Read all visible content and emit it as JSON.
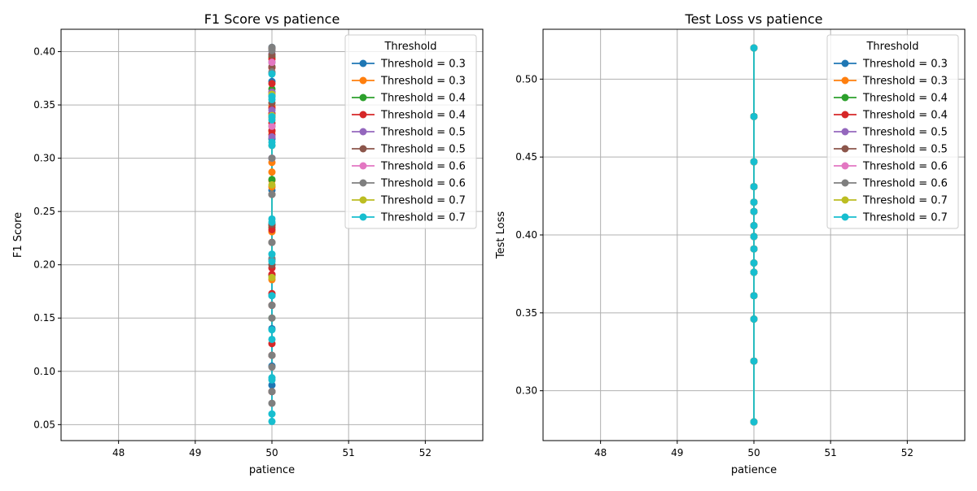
{
  "chart_data": [
    {
      "type": "line",
      "title": "F1 Score vs patience",
      "xlabel": "patience",
      "ylabel": "F1 Score",
      "xlim": [
        47.25,
        52.75
      ],
      "ylim": [
        0.035,
        0.421
      ],
      "xticks": [
        48,
        49,
        50,
        51,
        52
      ],
      "xtick_labels": [
        "48",
        "49",
        "50",
        "51",
        "52"
      ],
      "yticks": [
        0.05,
        0.1,
        0.15,
        0.2,
        0.25,
        0.3,
        0.35,
        0.4
      ],
      "ytick_labels": [
        "0.05",
        "0.10",
        "0.15",
        "0.20",
        "0.25",
        "0.30",
        "0.35",
        "0.40"
      ],
      "grid": true,
      "legend_title": "Threshold",
      "legend_position": "top-right",
      "series": [
        {
          "name": "Threshold = 0.3",
          "color": "#1f77b4",
          "x": 50,
          "y": [
            0.087,
            0.105,
            0.14,
            0.171,
            0.205,
            0.238,
            0.27,
            0.3,
            0.318,
            0.34,
            0.358,
            0.372,
            0.39,
            0.404
          ]
        },
        {
          "name": "Threshold = 0.3",
          "color": "#ff7f0e",
          "x": 50,
          "y": [
            0.186,
            0.231,
            0.273,
            0.279,
            0.287,
            0.296,
            0.312,
            0.325,
            0.338,
            0.349
          ]
        },
        {
          "name": "Threshold = 0.4",
          "color": "#2ca02c",
          "x": 50,
          "y": [
            0.15,
            0.19,
            0.235,
            0.28,
            0.33,
            0.365,
            0.395
          ]
        },
        {
          "name": "Threshold = 0.4",
          "color": "#d62728",
          "x": 50,
          "y": [
            0.081,
            0.115,
            0.126,
            0.162,
            0.173,
            0.191,
            0.197,
            0.233,
            0.237,
            0.322,
            0.326,
            0.333,
            0.342,
            0.347,
            0.362,
            0.37,
            0.385,
            0.393
          ]
        },
        {
          "name": "Threshold = 0.5",
          "color": "#9467bd",
          "x": 50,
          "y": [
            0.32,
            0.345,
            0.362,
            0.38,
            0.398
          ]
        },
        {
          "name": "Threshold = 0.5",
          "color": "#8c564b",
          "x": 50,
          "y": [
            0.081,
            0.115,
            0.162,
            0.2,
            0.221,
            0.238,
            0.266,
            0.352,
            0.386,
            0.397,
            0.403
          ]
        },
        {
          "name": "Threshold = 0.6",
          "color": "#e377c2",
          "x": 50,
          "y": [
            0.3,
            0.33,
            0.36,
            0.39
          ]
        },
        {
          "name": "Threshold = 0.6",
          "color": "#7f7f7f",
          "x": 50,
          "y": [
            0.07,
            0.081,
            0.104,
            0.115,
            0.15,
            0.162,
            0.206,
            0.221,
            0.266,
            0.3,
            0.34,
            0.381,
            0.401,
            0.404
          ]
        },
        {
          "name": "Threshold = 0.7",
          "color": "#bcbd22",
          "x": 50,
          "y": [
            0.188,
            0.275,
            0.34,
            0.36
          ]
        },
        {
          "name": "Threshold = 0.7",
          "color": "#17becf",
          "x": 50,
          "y": [
            0.053,
            0.06,
            0.092,
            0.094,
            0.13,
            0.139,
            0.171,
            0.203,
            0.21,
            0.24,
            0.243,
            0.312,
            0.315,
            0.336,
            0.339,
            0.355,
            0.358,
            0.379
          ]
        }
      ]
    },
    {
      "type": "line",
      "title": "Test Loss vs patience",
      "xlabel": "patience",
      "ylabel": "Test Loss",
      "xlim": [
        47.25,
        52.75
      ],
      "ylim": [
        0.268,
        0.532
      ],
      "xticks": [
        48,
        49,
        50,
        51,
        52
      ],
      "xtick_labels": [
        "48",
        "49",
        "50",
        "51",
        "52"
      ],
      "yticks": [
        0.3,
        0.35,
        0.4,
        0.45,
        0.5
      ],
      "ytick_labels": [
        "0.30",
        "0.35",
        "0.40",
        "0.45",
        "0.50"
      ],
      "grid": true,
      "legend_title": "Threshold",
      "legend_position": "top-right",
      "series": [
        {
          "name": "Threshold = 0.3",
          "color": "#1f77b4",
          "x": 50,
          "y": [
            0.28,
            0.319,
            0.346,
            0.361,
            0.376,
            0.382,
            0.391,
            0.399,
            0.406,
            0.415,
            0.421,
            0.431,
            0.447,
            0.476,
            0.52
          ]
        },
        {
          "name": "Threshold = 0.3",
          "color": "#ff7f0e",
          "x": 50,
          "y": [
            0.28,
            0.319,
            0.346,
            0.361,
            0.376,
            0.382,
            0.391,
            0.399,
            0.406,
            0.415,
            0.421,
            0.431,
            0.447,
            0.476,
            0.52
          ]
        },
        {
          "name": "Threshold = 0.4",
          "color": "#2ca02c",
          "x": 50,
          "y": [
            0.28,
            0.319,
            0.346,
            0.361,
            0.376,
            0.382,
            0.391,
            0.399,
            0.406,
            0.415,
            0.421,
            0.431,
            0.447,
            0.476,
            0.52
          ]
        },
        {
          "name": "Threshold = 0.4",
          "color": "#d62728",
          "x": 50,
          "y": [
            0.28,
            0.319,
            0.346,
            0.361,
            0.376,
            0.382,
            0.391,
            0.399,
            0.406,
            0.415,
            0.421,
            0.431,
            0.447,
            0.476,
            0.52
          ]
        },
        {
          "name": "Threshold = 0.5",
          "color": "#9467bd",
          "x": 50,
          "y": [
            0.28,
            0.319,
            0.346,
            0.361,
            0.376,
            0.382,
            0.391,
            0.399,
            0.406,
            0.415,
            0.421,
            0.431,
            0.447,
            0.476,
            0.52
          ]
        },
        {
          "name": "Threshold = 0.5",
          "color": "#8c564b",
          "x": 50,
          "y": [
            0.28,
            0.319,
            0.346,
            0.361,
            0.376,
            0.382,
            0.391,
            0.399,
            0.406,
            0.415,
            0.421,
            0.431,
            0.447,
            0.476,
            0.52
          ]
        },
        {
          "name": "Threshold = 0.6",
          "color": "#e377c2",
          "x": 50,
          "y": [
            0.28,
            0.319,
            0.346,
            0.361,
            0.376,
            0.382,
            0.391,
            0.399,
            0.406,
            0.415,
            0.421,
            0.431,
            0.447,
            0.476,
            0.52
          ]
        },
        {
          "name": "Threshold = 0.6",
          "color": "#7f7f7f",
          "x": 50,
          "y": [
            0.28,
            0.319,
            0.346,
            0.361,
            0.376,
            0.382,
            0.391,
            0.399,
            0.406,
            0.415,
            0.421,
            0.431,
            0.447,
            0.476,
            0.52
          ]
        },
        {
          "name": "Threshold = 0.7",
          "color": "#bcbd22",
          "x": 50,
          "y": [
            0.28,
            0.319,
            0.346,
            0.361,
            0.376,
            0.382,
            0.391,
            0.399,
            0.406,
            0.415,
            0.421,
            0.431,
            0.447,
            0.476,
            0.52
          ]
        },
        {
          "name": "Threshold = 0.7",
          "color": "#17becf",
          "x": 50,
          "y": [
            0.28,
            0.319,
            0.346,
            0.361,
            0.376,
            0.382,
            0.391,
            0.399,
            0.406,
            0.415,
            0.421,
            0.431,
            0.447,
            0.476,
            0.52
          ]
        }
      ]
    }
  ]
}
